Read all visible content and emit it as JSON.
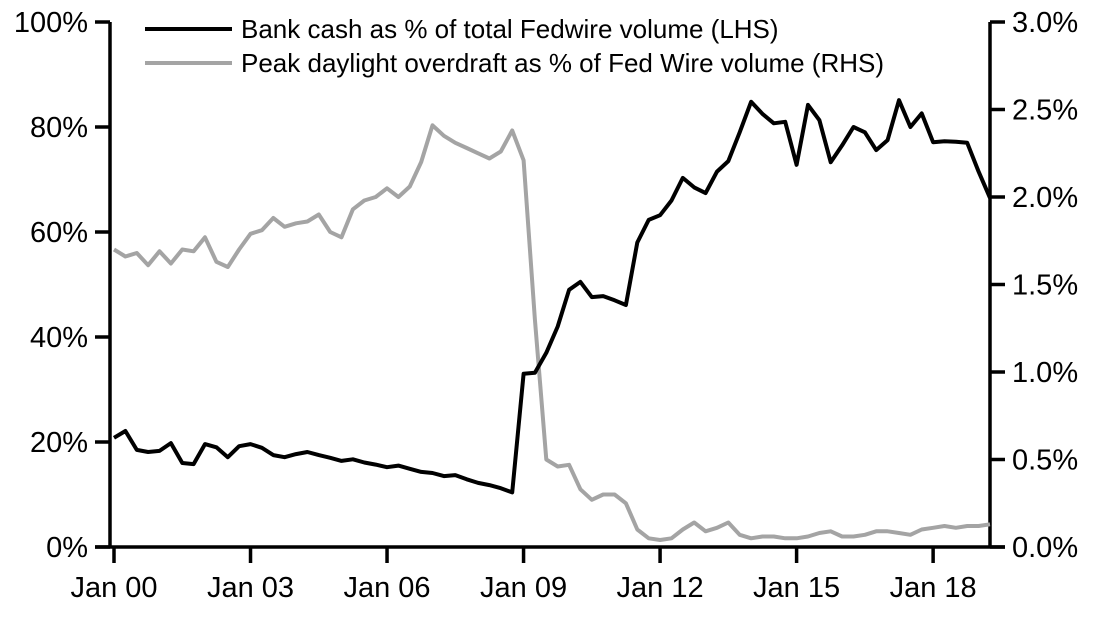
{
  "chart_data": {
    "type": "line",
    "title": "",
    "grid": false,
    "background": "#ffffff",
    "legend_position": "top-left-inside",
    "x_frequency": "quarterly",
    "x_tick_labels": [
      "Jan 00",
      "Jan 03",
      "Jan 06",
      "Jan 09",
      "Jan 12",
      "Jan 15",
      "Jan 18"
    ],
    "x_quarters": [
      "2000Q1",
      "2000Q2",
      "2000Q3",
      "2000Q4",
      "2001Q1",
      "2001Q2",
      "2001Q3",
      "2001Q4",
      "2002Q1",
      "2002Q2",
      "2002Q3",
      "2002Q4",
      "2003Q1",
      "2003Q2",
      "2003Q3",
      "2003Q4",
      "2004Q1",
      "2004Q2",
      "2004Q3",
      "2004Q4",
      "2005Q1",
      "2005Q2",
      "2005Q3",
      "2005Q4",
      "2006Q1",
      "2006Q2",
      "2006Q3",
      "2006Q4",
      "2007Q1",
      "2007Q2",
      "2007Q3",
      "2007Q4",
      "2008Q1",
      "2008Q2",
      "2008Q3",
      "2008Q4",
      "2009Q1",
      "2009Q2",
      "2009Q3",
      "2009Q4",
      "2010Q1",
      "2010Q2",
      "2010Q3",
      "2010Q4",
      "2011Q1",
      "2011Q2",
      "2011Q3",
      "2011Q4",
      "2012Q1",
      "2012Q2",
      "2012Q3",
      "2012Q4",
      "2013Q1",
      "2013Q2",
      "2013Q3",
      "2013Q4",
      "2014Q1",
      "2014Q2",
      "2014Q3",
      "2014Q4",
      "2015Q1",
      "2015Q2",
      "2015Q3",
      "2015Q4",
      "2016Q1",
      "2016Q2",
      "2016Q3",
      "2016Q4",
      "2017Q1",
      "2017Q2",
      "2017Q3",
      "2017Q4",
      "2018Q1",
      "2018Q2",
      "2018Q3",
      "2018Q4",
      "2019Q1",
      "2019Q2"
    ],
    "left_axis": {
      "min": 0,
      "max": 100,
      "tick_values": [
        0,
        20,
        40,
        60,
        80,
        100
      ],
      "tick_labels": [
        "0%",
        "20%",
        "40%",
        "60%",
        "80%",
        "100%"
      ]
    },
    "right_axis": {
      "min": 0,
      "max": 3,
      "tick_values": [
        0,
        0.5,
        1.0,
        1.5,
        2.0,
        2.5,
        3.0
      ],
      "tick_labels": [
        "0.0%",
        "0.5%",
        "1.0%",
        "1.5%",
        "2.0%",
        "2.5%",
        "3.0%"
      ]
    },
    "series": [
      {
        "name": "Bank cash as % of total Fedwire volume (LHS)",
        "axis": "left",
        "color": "#000000",
        "values": [
          20.8,
          22.1,
          18.5,
          18.1,
          18.3,
          19.8,
          16.0,
          15.8,
          19.6,
          19.0,
          17.1,
          19.2,
          19.6,
          18.9,
          17.5,
          17.1,
          17.7,
          18.1,
          17.5,
          17.0,
          16.4,
          16.7,
          16.1,
          15.7,
          15.2,
          15.5,
          14.9,
          14.3,
          14.1,
          13.5,
          13.7,
          12.9,
          12.2,
          11.8,
          11.2,
          10.4,
          33.0,
          33.2,
          37.0,
          42.0,
          49.0,
          50.5,
          47.6,
          47.8,
          47.0,
          46.1,
          58.0,
          62.3,
          63.2,
          66.0,
          70.3,
          68.5,
          67.4,
          71.5,
          73.5,
          79.0,
          84.8,
          82.5,
          80.7,
          81.0,
          72.8,
          84.2,
          81.3,
          73.3,
          76.5,
          80.0,
          79.0,
          75.6,
          77.5,
          85.1,
          80.0,
          82.6,
          77.1,
          77.3,
          77.2,
          77.0,
          71.5,
          66.5
        ]
      },
      {
        "name": "Peak daylight overdraft as % of Fed Wire volume (RHS)",
        "axis": "right",
        "color": "#a4a4a4",
        "values": [
          1.7,
          1.66,
          1.68,
          1.61,
          1.69,
          1.62,
          1.7,
          1.69,
          1.77,
          1.63,
          1.6,
          1.7,
          1.79,
          1.81,
          1.88,
          1.83,
          1.85,
          1.86,
          1.9,
          1.8,
          1.77,
          1.93,
          1.98,
          2.0,
          2.05,
          2.0,
          2.06,
          2.2,
          2.41,
          2.35,
          2.31,
          2.28,
          2.25,
          2.22,
          2.26,
          2.38,
          2.21,
          1.3,
          0.5,
          0.46,
          0.47,
          0.33,
          0.27,
          0.3,
          0.3,
          0.25,
          0.1,
          0.05,
          0.04,
          0.05,
          0.1,
          0.14,
          0.09,
          0.11,
          0.14,
          0.07,
          0.05,
          0.06,
          0.06,
          0.05,
          0.05,
          0.06,
          0.08,
          0.09,
          0.06,
          0.06,
          0.07,
          0.09,
          0.09,
          0.08,
          0.07,
          0.1,
          0.11,
          0.12,
          0.11,
          0.12,
          0.12,
          0.13
        ]
      }
    ]
  }
}
